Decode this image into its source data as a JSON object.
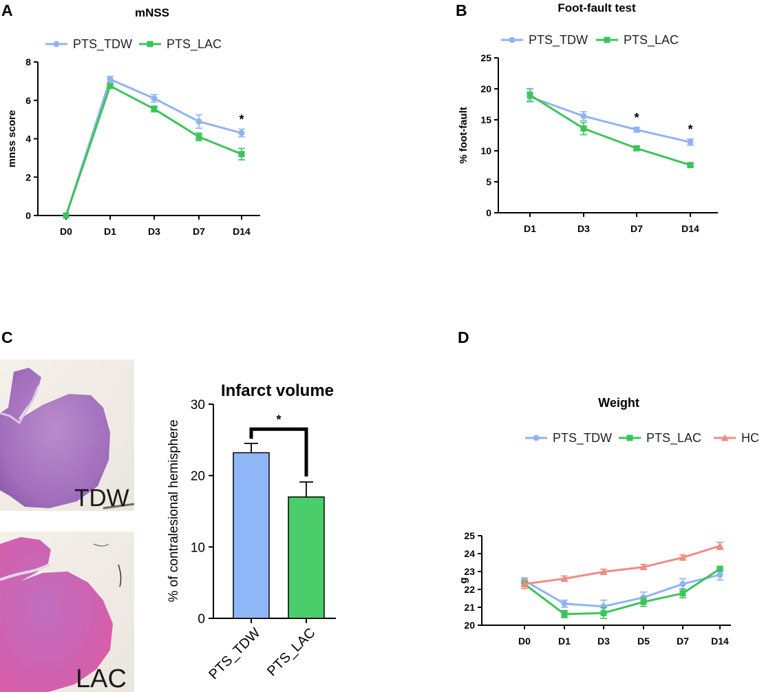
{
  "panels": {
    "A": {
      "letter": "A",
      "chart_key": "mnss"
    },
    "B": {
      "letter": "B",
      "chart_key": "footfault"
    },
    "C": {
      "letter": "C",
      "image_labels": [
        "TDW",
        "LAC"
      ],
      "chart_key": "infarct"
    },
    "D": {
      "letter": "D",
      "chart_key": "weight"
    }
  },
  "colors": {
    "tdw": "#8fb3f5",
    "lac": "#3cc45a",
    "hc": "#f08c84",
    "bar_tdw": "#90b8f8",
    "bar_lac": "#4ccd6b"
  },
  "chart_data": [
    {
      "id": "mnss",
      "type": "line",
      "title": "mNSS",
      "xlabel": "",
      "ylabel": "mnss score",
      "categories": [
        "D0",
        "D1",
        "D3",
        "D7",
        "D14"
      ],
      "ylim": [
        0,
        8
      ],
      "yticks": [
        0,
        2,
        4,
        6,
        8
      ],
      "series": [
        {
          "name": "PTS_TDW",
          "values": [
            0,
            7.1,
            6.1,
            4.9,
            4.3
          ],
          "errors": [
            0,
            0.15,
            0.2,
            0.35,
            0.2
          ]
        },
        {
          "name": "PTS_LAC",
          "values": [
            0,
            6.75,
            5.55,
            4.1,
            3.2
          ],
          "errors": [
            0,
            0.12,
            0.15,
            0.2,
            0.3
          ]
        }
      ],
      "annotations": [
        {
          "category": "D14",
          "text": "*"
        }
      ]
    },
    {
      "id": "footfault",
      "type": "line",
      "title": "Foot-fault test",
      "xlabel": "",
      "ylabel": "% foot-fault",
      "categories": [
        "D1",
        "D3",
        "D7",
        "D14"
      ],
      "ylim": [
        0,
        25
      ],
      "yticks": [
        0,
        5,
        10,
        15,
        20,
        25
      ],
      "series": [
        {
          "name": "PTS_TDW",
          "values": [
            18.7,
            15.6,
            13.4,
            11.4
          ],
          "errors": [
            0.8,
            0.7,
            0.4,
            0.5
          ]
        },
        {
          "name": "PTS_LAC",
          "values": [
            19.0,
            13.6,
            10.4,
            7.7
          ],
          "errors": [
            1.0,
            1.0,
            0.3,
            0.3
          ]
        }
      ],
      "annotations": [
        {
          "category": "D7",
          "text": "*"
        },
        {
          "category": "D14",
          "text": "*"
        }
      ]
    },
    {
      "id": "infarct",
      "type": "bar",
      "title": "Infarct volume",
      "xlabel": "",
      "ylabel": "% of contralesional hemisphere",
      "categories": [
        "PTS_TDW",
        "PTS_LAC"
      ],
      "values": [
        23.2,
        17.0
      ],
      "errors": [
        1.3,
        2.1
      ],
      "ylim": [
        0,
        30
      ],
      "yticks": [
        0,
        10,
        20,
        30
      ],
      "significance": "*"
    },
    {
      "id": "weight",
      "type": "line",
      "title": "Weight",
      "xlabel": "",
      "ylabel": "g",
      "categories": [
        "D0",
        "D1",
        "D3",
        "D5",
        "D7",
        "D14"
      ],
      "ylim": [
        20,
        25
      ],
      "yticks": [
        20,
        21,
        22,
        23,
        24,
        25
      ],
      "series": [
        {
          "name": "PTS_TDW",
          "values": [
            22.5,
            21.2,
            21.05,
            21.55,
            22.3,
            22.82
          ],
          "errors": [
            0.15,
            0.2,
            0.35,
            0.3,
            0.3,
            0.3
          ]
        },
        {
          "name": "PTS_LAC",
          "values": [
            22.3,
            20.62,
            20.68,
            21.3,
            21.78,
            23.15
          ],
          "errors": [
            0.15,
            0.2,
            0.3,
            0.25,
            0.25,
            0.12
          ]
        },
        {
          "name": "HC",
          "values": [
            22.3,
            22.6,
            22.98,
            23.25,
            23.78,
            24.43
          ],
          "errors": [
            0.25,
            0.15,
            0.15,
            0.15,
            0.15,
            0.2
          ]
        }
      ]
    }
  ]
}
